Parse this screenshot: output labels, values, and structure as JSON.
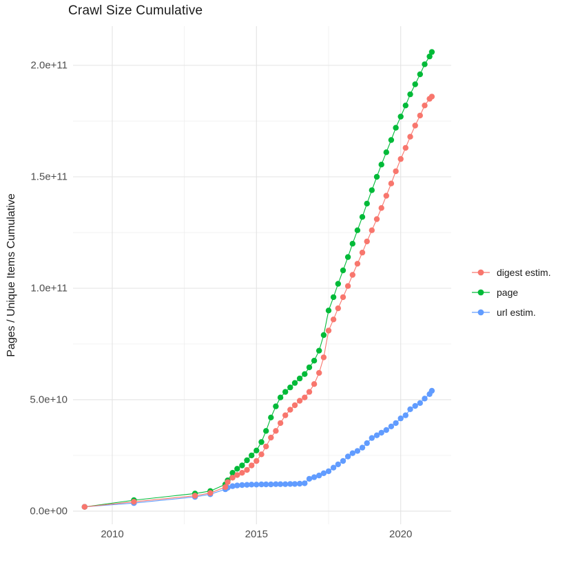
{
  "chart_data": {
    "type": "line",
    "title": "Crawl Size Cumulative",
    "xlabel": "",
    "ylabel": "Pages / Unique Items Cumulative",
    "legend_position": "right",
    "grid": true,
    "value_unit": "1e9",
    "x_axis": {
      "range": [
        2008.64,
        2021.75
      ],
      "ticks": [
        {
          "value": 2010,
          "label": "2010"
        },
        {
          "value": 2015,
          "label": "2015"
        },
        {
          "value": 2020,
          "label": "2020"
        }
      ],
      "minor": [
        2012.5,
        2017.5
      ]
    },
    "y_axis": {
      "range": [
        -5.9,
        217.6
      ],
      "ticks": [
        {
          "value": 0,
          "label": "0.0e+00"
        },
        {
          "value": 50,
          "label": "5.0e+10"
        },
        {
          "value": 100,
          "label": "1.0e+11"
        },
        {
          "value": 150,
          "label": "1.5e+11"
        },
        {
          "value": 200,
          "label": "2.0e+11"
        }
      ],
      "minor": [
        25,
        75,
        125,
        175
      ]
    },
    "series": [
      {
        "name": "digest estim.",
        "color": "#F8766D",
        "points": [
          [
            2009.04,
            1.9
          ],
          [
            2010.75,
            4.2
          ],
          [
            2012.87,
            6.9
          ],
          [
            2013.4,
            8.1
          ],
          [
            2013.92,
            10.8
          ],
          [
            2014.0,
            13.0
          ],
          [
            2014.17,
            15.0
          ],
          [
            2014.33,
            16.2
          ],
          [
            2014.5,
            17.2
          ],
          [
            2014.67,
            18.5
          ],
          [
            2014.83,
            20.5
          ],
          [
            2015.0,
            22.5
          ],
          [
            2015.17,
            25.5
          ],
          [
            2015.33,
            29.0
          ],
          [
            2015.5,
            33.0
          ],
          [
            2015.67,
            36.0
          ],
          [
            2015.83,
            39.5
          ],
          [
            2016.0,
            43.0
          ],
          [
            2016.17,
            45.5
          ],
          [
            2016.33,
            47.5
          ],
          [
            2016.5,
            49.5
          ],
          [
            2016.67,
            51.0
          ],
          [
            2016.83,
            53.5
          ],
          [
            2017.0,
            57.0
          ],
          [
            2017.17,
            62.0
          ],
          [
            2017.33,
            69.0
          ],
          [
            2017.5,
            81.0
          ],
          [
            2017.67,
            86.0
          ],
          [
            2017.83,
            91.0
          ],
          [
            2018.0,
            96.0
          ],
          [
            2018.17,
            101.0
          ],
          [
            2018.33,
            106.0
          ],
          [
            2018.5,
            111.0
          ],
          [
            2018.67,
            116.0
          ],
          [
            2018.83,
            121.0
          ],
          [
            2019.0,
            126.0
          ],
          [
            2019.17,
            131.0
          ],
          [
            2019.33,
            136.0
          ],
          [
            2019.5,
            141.5
          ],
          [
            2019.67,
            147.0
          ],
          [
            2019.83,
            152.5
          ],
          [
            2020.0,
            158.0
          ],
          [
            2020.17,
            163.0
          ],
          [
            2020.33,
            168.0
          ],
          [
            2020.5,
            173.0
          ],
          [
            2020.67,
            177.5
          ],
          [
            2020.83,
            182.0
          ],
          [
            2021.0,
            185.0
          ],
          [
            2021.08,
            186.0
          ]
        ]
      },
      {
        "name": "page",
        "color": "#00BA38",
        "points": [
          [
            2009.04,
            1.9
          ],
          [
            2010.75,
            4.9
          ],
          [
            2012.87,
            7.9
          ],
          [
            2013.4,
            9.0
          ],
          [
            2013.92,
            12.0
          ],
          [
            2014.0,
            13.8
          ],
          [
            2014.17,
            17.2
          ],
          [
            2014.33,
            19.0
          ],
          [
            2014.5,
            20.5
          ],
          [
            2014.67,
            22.8
          ],
          [
            2014.83,
            25.0
          ],
          [
            2015.0,
            27.2
          ],
          [
            2015.17,
            31.0
          ],
          [
            2015.33,
            36.0
          ],
          [
            2015.5,
            42.0
          ],
          [
            2015.67,
            47.0
          ],
          [
            2015.83,
            51.0
          ],
          [
            2016.0,
            53.5
          ],
          [
            2016.17,
            55.5
          ],
          [
            2016.33,
            57.5
          ],
          [
            2016.5,
            59.5
          ],
          [
            2016.67,
            61.5
          ],
          [
            2016.83,
            64.5
          ],
          [
            2017.0,
            67.5
          ],
          [
            2017.17,
            72.0
          ],
          [
            2017.33,
            79.0
          ],
          [
            2017.5,
            90.0
          ],
          [
            2017.67,
            96.0
          ],
          [
            2017.83,
            102.0
          ],
          [
            2018.0,
            108.0
          ],
          [
            2018.17,
            114.0
          ],
          [
            2018.33,
            120.0
          ],
          [
            2018.5,
            126.0
          ],
          [
            2018.67,
            132.0
          ],
          [
            2018.83,
            138.0
          ],
          [
            2019.0,
            144.0
          ],
          [
            2019.17,
            150.0
          ],
          [
            2019.33,
            155.5
          ],
          [
            2019.5,
            161.0
          ],
          [
            2019.67,
            166.5
          ],
          [
            2019.83,
            172.0
          ],
          [
            2020.0,
            177.0
          ],
          [
            2020.17,
            182.0
          ],
          [
            2020.33,
            187.0
          ],
          [
            2020.5,
            191.5
          ],
          [
            2020.67,
            196.0
          ],
          [
            2020.83,
            200.5
          ],
          [
            2021.0,
            204.0
          ],
          [
            2021.08,
            206.0
          ]
        ]
      },
      {
        "name": "url estim.",
        "color": "#619CFF",
        "points": [
          [
            2009.04,
            1.9
          ],
          [
            2010.75,
            3.6
          ],
          [
            2012.87,
            6.4
          ],
          [
            2013.4,
            7.6
          ],
          [
            2013.92,
            9.8
          ],
          [
            2014.0,
            10.5
          ],
          [
            2014.17,
            11.2
          ],
          [
            2014.33,
            11.5
          ],
          [
            2014.5,
            11.7
          ],
          [
            2014.67,
            11.8
          ],
          [
            2014.83,
            11.9
          ],
          [
            2015.0,
            11.9
          ],
          [
            2015.17,
            12.0
          ],
          [
            2015.33,
            12.0
          ],
          [
            2015.5,
            12.0
          ],
          [
            2015.67,
            12.1
          ],
          [
            2015.83,
            12.1
          ],
          [
            2016.0,
            12.1
          ],
          [
            2016.17,
            12.2
          ],
          [
            2016.33,
            12.2
          ],
          [
            2016.5,
            12.3
          ],
          [
            2016.67,
            12.5
          ],
          [
            2016.83,
            14.5
          ],
          [
            2017.0,
            15.2
          ],
          [
            2017.17,
            16.0
          ],
          [
            2017.33,
            17.0
          ],
          [
            2017.5,
            17.9
          ],
          [
            2017.67,
            19.5
          ],
          [
            2017.83,
            21.0
          ],
          [
            2018.0,
            22.5
          ],
          [
            2018.17,
            24.5
          ],
          [
            2018.33,
            26.0
          ],
          [
            2018.5,
            27.0
          ],
          [
            2018.67,
            28.5
          ],
          [
            2018.83,
            30.5
          ],
          [
            2019.0,
            32.8
          ],
          [
            2019.17,
            34.0
          ],
          [
            2019.33,
            35.2
          ],
          [
            2019.5,
            36.4
          ],
          [
            2019.67,
            38.0
          ],
          [
            2019.83,
            39.5
          ],
          [
            2020.0,
            41.6
          ],
          [
            2020.17,
            43.0
          ],
          [
            2020.33,
            45.7
          ],
          [
            2020.5,
            47.2
          ],
          [
            2020.67,
            48.5
          ],
          [
            2020.83,
            50.5
          ],
          [
            2021.0,
            52.5
          ],
          [
            2021.08,
            54.0
          ]
        ]
      }
    ]
  }
}
